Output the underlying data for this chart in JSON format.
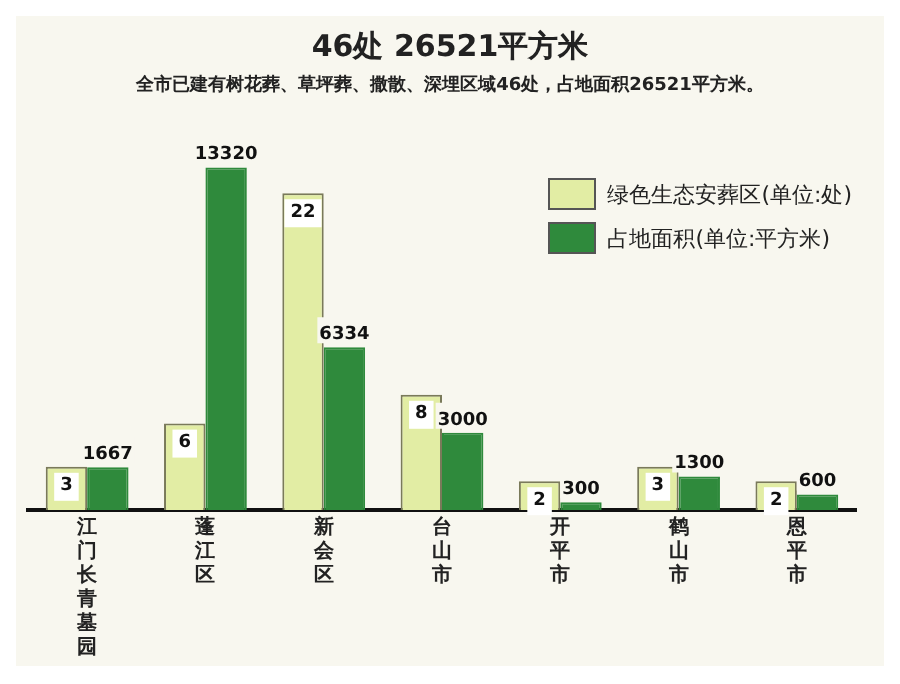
{
  "chart_data": {
    "type": "bar",
    "title": "46处  26521平方米",
    "subtitle": "全市已建有树花葬、草坪葬、撒散、深埋区域46处，占地面积26521平方米。",
    "categories": [
      "江门长青墓园",
      "蓬江区",
      "新会区",
      "台山市",
      "开平市",
      "鹤山市",
      "恩平市"
    ],
    "series": [
      {
        "name": "绿色生态安葬区(单位:处)",
        "color": "#e2eda4",
        "values": [
          3,
          6,
          22,
          8,
          2,
          3,
          2
        ]
      },
      {
        "name": "占地面积(单位:平方米)",
        "color": "#2f8a3c",
        "axis": "y2",
        "values": [
          1667,
          13320,
          6334,
          3000,
          300,
          1300,
          600
        ]
      }
    ],
    "data_labels": true,
    "legend": "top right",
    "grid": false,
    "tick_labels": "x"
  }
}
